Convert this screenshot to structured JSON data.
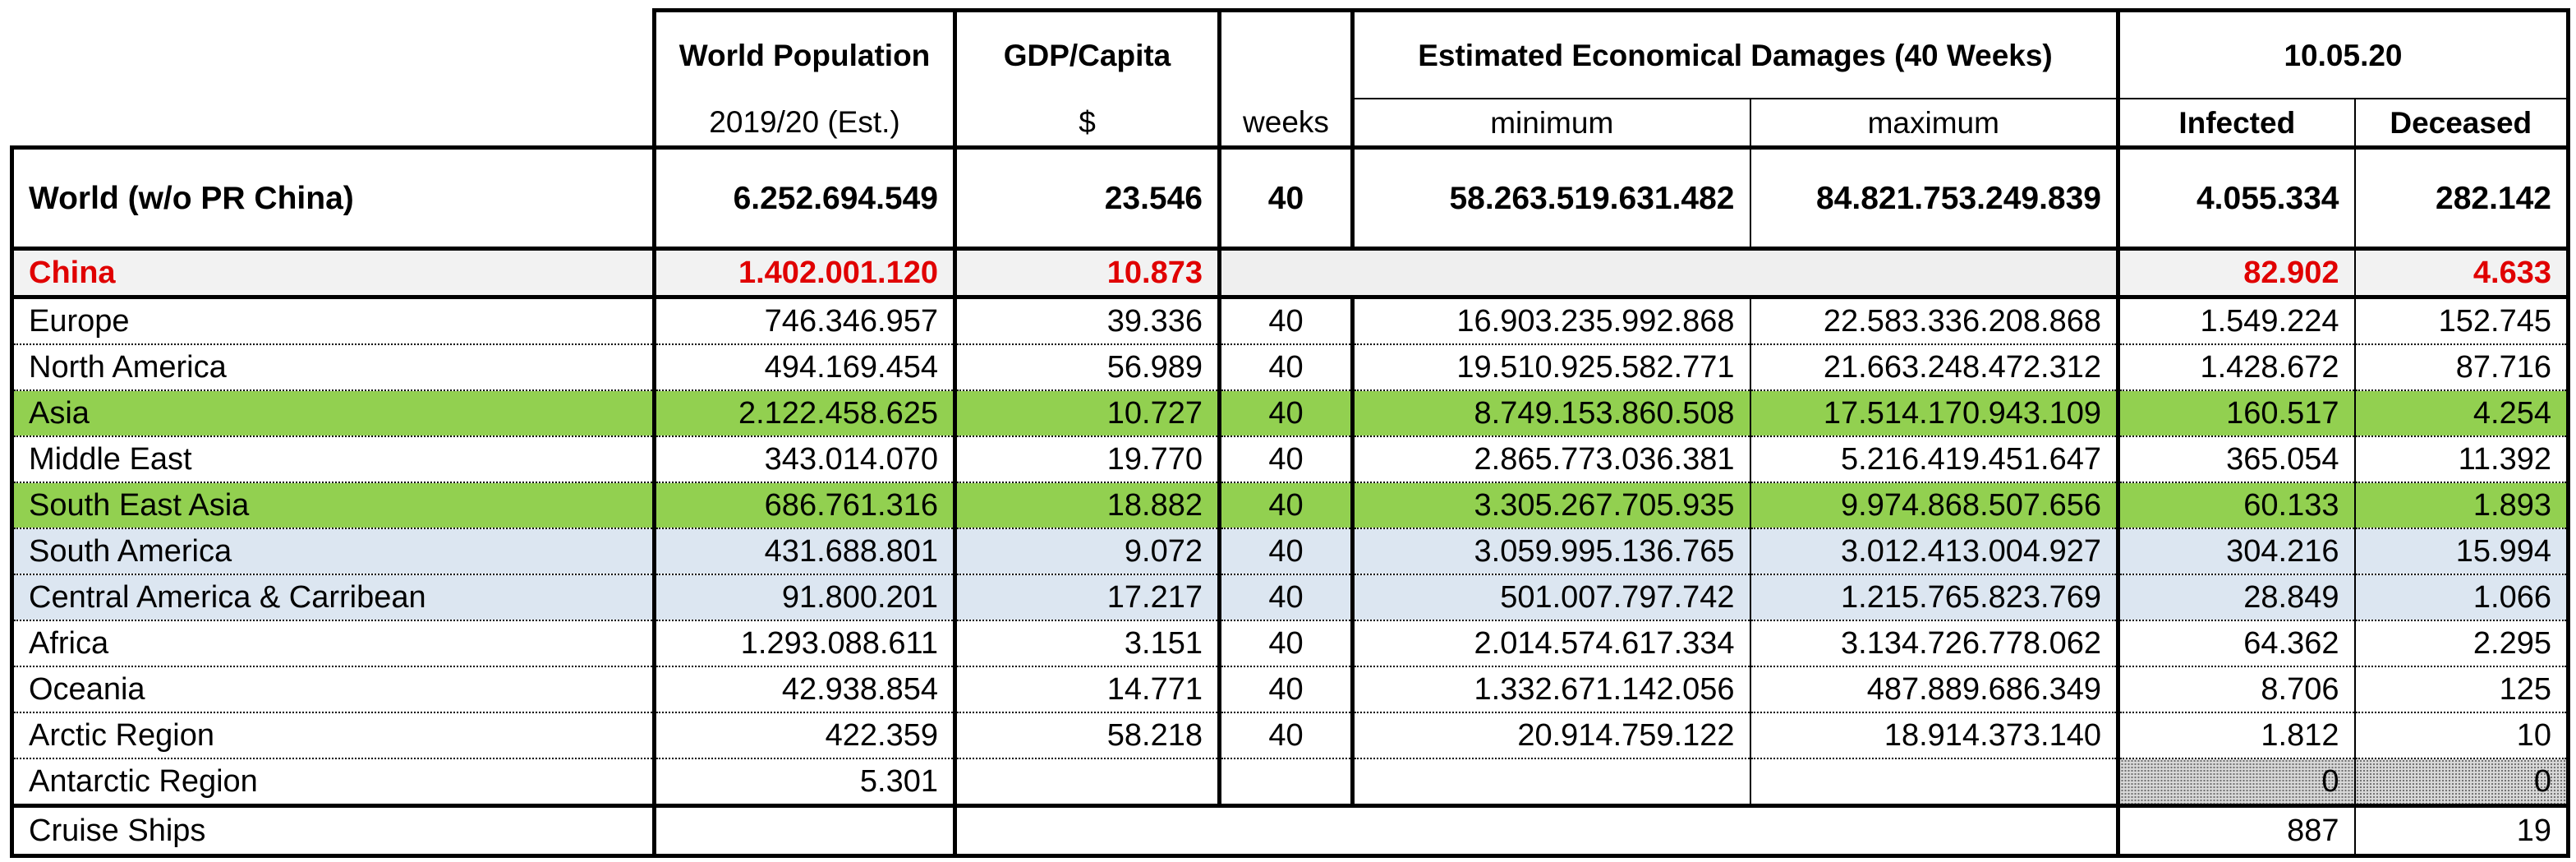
{
  "header": {
    "world_population": "World Population",
    "gdp_capita": "GDP/Capita",
    "damages": "Estimated Economical Damages (40 Weeks)",
    "date": "10.05.20",
    "pop_sub": "2019/20 (Est.)",
    "gdp_sub": "$",
    "weeks_sub": "weeks",
    "min_sub": "minimum",
    "max_sub": "maximum",
    "infected_sub": "Infected",
    "deceased_sub": "Deceased"
  },
  "world": {
    "name": "World (w/o PR China)",
    "population": "6.252.694.549",
    "gdp": "23.546",
    "weeks": "40",
    "min": "58.263.519.631.482",
    "max": "84.821.753.249.839",
    "infected": "4.055.334",
    "deceased": "282.142"
  },
  "china": {
    "name": "China",
    "population": "1.402.001.120",
    "gdp": "10.873",
    "infected": "82.902",
    "deceased": "4.633"
  },
  "rows": [
    {
      "name": "Europe",
      "population": "746.346.957",
      "gdp": "39.336",
      "weeks": "40",
      "min": "16.903.235.992.868",
      "max": "22.583.336.208.868",
      "infected": "1.549.224",
      "deceased": "152.745"
    },
    {
      "name": "North America",
      "population": "494.169.454",
      "gdp": "56.989",
      "weeks": "40",
      "min": "19.510.925.582.771",
      "max": "21.663.248.472.312",
      "infected": "1.428.672",
      "deceased": "87.716"
    },
    {
      "name": "Asia",
      "population": "2.122.458.625",
      "gdp": "10.727",
      "weeks": "40",
      "min": "8.749.153.860.508",
      "max": "17.514.170.943.109",
      "infected": "160.517",
      "deceased": "4.254"
    },
    {
      "name": "Middle East",
      "population": "343.014.070",
      "gdp": "19.770",
      "weeks": "40",
      "min": "2.865.773.036.381",
      "max": "5.216.419.451.647",
      "infected": "365.054",
      "deceased": "11.392"
    },
    {
      "name": "South East Asia",
      "population": "686.761.316",
      "gdp": "18.882",
      "weeks": "40",
      "min": "3.305.267.705.935",
      "max": "9.974.868.507.656",
      "infected": "60.133",
      "deceased": "1.893"
    },
    {
      "name": "South America",
      "population": "431.688.801",
      "gdp": "9.072",
      "weeks": "40",
      "min": "3.059.995.136.765",
      "max": "3.012.413.004.927",
      "infected": "304.216",
      "deceased": "15.994"
    },
    {
      "name": "Central America & Carribean",
      "population": "91.800.201",
      "gdp": "17.217",
      "weeks": "40",
      "min": "501.007.797.742",
      "max": "1.215.765.823.769",
      "infected": "28.849",
      "deceased": "1.066"
    },
    {
      "name": "Africa",
      "population": "1.293.088.611",
      "gdp": "3.151",
      "weeks": "40",
      "min": "2.014.574.617.334",
      "max": "3.134.726.778.062",
      "infected": "64.362",
      "deceased": "2.295"
    },
    {
      "name": "Oceania",
      "population": "42.938.854",
      "gdp": "14.771",
      "weeks": "40",
      "min": "1.332.671.142.056",
      "max": "487.889.686.349",
      "infected": "8.706",
      "deceased": "125"
    },
    {
      "name": "Arctic Region",
      "population": "422.359",
      "gdp": "58.218",
      "weeks": "40",
      "min": "20.914.759.122",
      "max": "18.914.373.140",
      "infected": "1.812",
      "deceased": "10"
    },
    {
      "name": "Antarctic Region",
      "population": "5.301",
      "gdp": "",
      "weeks": "",
      "min": "",
      "max": "",
      "infected": "0",
      "deceased": "0"
    }
  ],
  "cruise": {
    "name": "Cruise Ships",
    "infected": "887",
    "deceased": "19"
  },
  "colors": {
    "china_text": "#e00000",
    "highlight_green": "#92d050",
    "highlight_blue": "#dce6f1",
    "china_row_bg": "#f2f2f2"
  }
}
